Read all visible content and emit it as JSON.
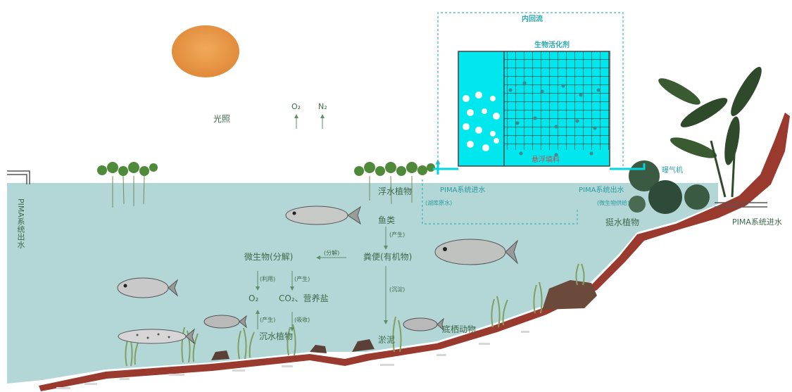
{
  "labels": {
    "light": "光照",
    "o2_top": "O₂",
    "n2_top": "N₂",
    "internal_reflux": "内回流",
    "bio_activator": "生物活化剂",
    "suspended_filler": "悬浮填料",
    "aerator": "曝气机",
    "pima_in_top": "PIMA系统进水",
    "pima_in_sub": "(湖库原水)",
    "pima_out_top": "PIMA系统出水",
    "pima_out_sub": "(微生物供给)",
    "pima_out_left": "PIMA系统出水",
    "pima_in_right": "PIMA系统进水",
    "floating_plants": "浮水植物",
    "emergent_plants": "挺水植物",
    "fish": "鱼类",
    "produce_1": "(产生)",
    "feces": "粪便(有机物)",
    "decompose_arrow": "(分解)",
    "microbes": "微生物(分解)",
    "use": "(利用)",
    "produce_2": "(产生)",
    "o2": "O₂",
    "co2_nutrients": "CO₂、营养盐",
    "sediment_arrow": "(沉淀)",
    "produce_3": "(产生)",
    "absorb": "(吸收)",
    "submerged_plants": "沉水植物",
    "sludge": "淤泥",
    "benthos": "底栖动物"
  },
  "colors": {
    "water": "#b3d6d6",
    "tank": "#00e7ee",
    "soil": "#9a3a2e",
    "sun": "#e89a4b",
    "text": "#3f6a4a",
    "teal_text": "#2aa8ad"
  }
}
